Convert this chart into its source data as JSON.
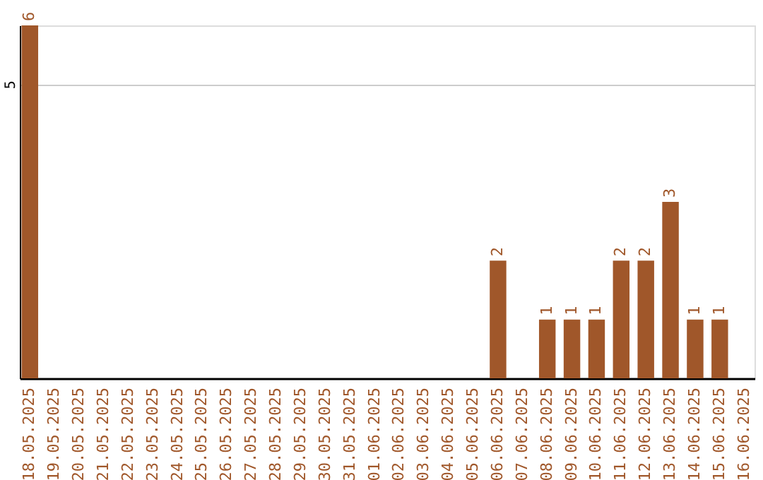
{
  "chart_data": {
    "type": "bar",
    "categories": [
      "18.05.2025",
      "19.05.2025",
      "20.05.2025",
      "21.05.2025",
      "22.05.2025",
      "23.05.2025",
      "24.05.2025",
      "25.05.2025",
      "26.05.2025",
      "27.05.2025",
      "28.05.2025",
      "29.05.2025",
      "30.05.2025",
      "31.05.2025",
      "01.06.2025",
      "02.06.2025",
      "03.06.2025",
      "04.06.2025",
      "05.06.2025",
      "06.06.2025",
      "07.06.2025",
      "08.06.2025",
      "09.06.2025",
      "10.06.2025",
      "11.06.2025",
      "12.06.2025",
      "13.06.2025",
      "14.06.2025",
      "15.06.2025",
      "16.06.2025"
    ],
    "values": [
      6,
      0,
      0,
      0,
      0,
      0,
      0,
      0,
      0,
      0,
      0,
      0,
      0,
      0,
      0,
      0,
      0,
      0,
      0,
      2,
      0,
      1,
      1,
      1,
      2,
      2,
      3,
      1,
      1,
      0
    ],
    "value_labels": [
      "6",
      null,
      null,
      null,
      null,
      null,
      null,
      null,
      null,
      null,
      null,
      null,
      null,
      null,
      null,
      null,
      null,
      null,
      null,
      "2",
      null,
      "1",
      "1",
      "1",
      "2",
      "2",
      "3",
      "1",
      "1",
      null
    ],
    "color": "#a0572a",
    "ylim": [
      0,
      6
    ],
    "yticks": [
      5
    ],
    "grid": "y"
  }
}
